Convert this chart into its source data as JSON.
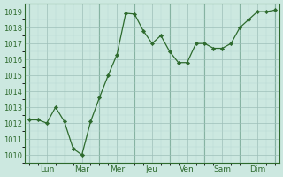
{
  "x_values": [
    0,
    1,
    2,
    3,
    4,
    5,
    6,
    7,
    8,
    9,
    10,
    11,
    12,
    13,
    14,
    15,
    16,
    17,
    18,
    19,
    20,
    21,
    22,
    23,
    24,
    25,
    26,
    27,
    28
  ],
  "y_values": [
    1012.2,
    1012.2,
    1012.0,
    1013.0,
    1012.1,
    1010.4,
    1010.0,
    1012.1,
    1013.6,
    1015.0,
    1016.3,
    1018.9,
    1018.85,
    1017.8,
    1017.0,
    1017.5,
    1016.5,
    1015.8,
    1015.8,
    1017.0,
    1017.0,
    1016.7,
    1016.7,
    1017.0,
    1018.0,
    1018.5,
    1019.0,
    1019.0,
    1019.1
  ],
  "day_boundaries": [
    0,
    4,
    8,
    12,
    16,
    20,
    24,
    28
  ],
  "tick_positions": [
    2,
    6,
    10,
    14,
    18,
    22,
    26
  ],
  "tick_labels": [
    "Lun",
    "Mar",
    "Mer",
    "Jeu",
    "Ven",
    "Sam",
    "Dim"
  ],
  "ylim": [
    1009.5,
    1019.5
  ],
  "yticks": [
    1010,
    1011,
    1012,
    1013,
    1014,
    1015,
    1016,
    1017,
    1018,
    1019
  ],
  "line_color": "#2d6a2d",
  "marker_color": "#2d6a2d",
  "bg_color": "#cce8e0",
  "grid_color_major": "#9dbfb8",
  "grid_color_minor": "#b8d8d2"
}
